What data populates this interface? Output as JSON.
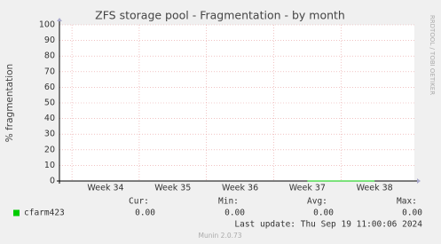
{
  "chart_data": {
    "type": "line",
    "title": "ZFS storage pool - Fragmentation - by month",
    "y_label": "% fragmentation",
    "watermark": "RRDTOOL / TOBI OETIKER",
    "categories": [
      "Week 34",
      "Week 35",
      "Week 36",
      "Week 37",
      "Week 38"
    ],
    "series": [
      {
        "name": "cfarm423",
        "color": "#00cc00",
        "values": [
          null,
          null,
          null,
          0,
          0
        ],
        "stats": [
          0,
          0,
          0,
          0
        ],
        "stats_labels": [
          "0.00",
          "0.00",
          "0.00",
          "0.00"
        ]
      }
    ],
    "stats_headers": [
      "Cur:",
      "Min:",
      "Avg:",
      "Max:"
    ],
    "ylim": [
      0,
      100
    ],
    "yticks": [
      0,
      10,
      20,
      30,
      40,
      50,
      60,
      70,
      80,
      90,
      100
    ],
    "grid": true,
    "last_update": "Last update: Thu Sep 19 11:00:06 2024",
    "footer": "Munin 2.0.73"
  }
}
